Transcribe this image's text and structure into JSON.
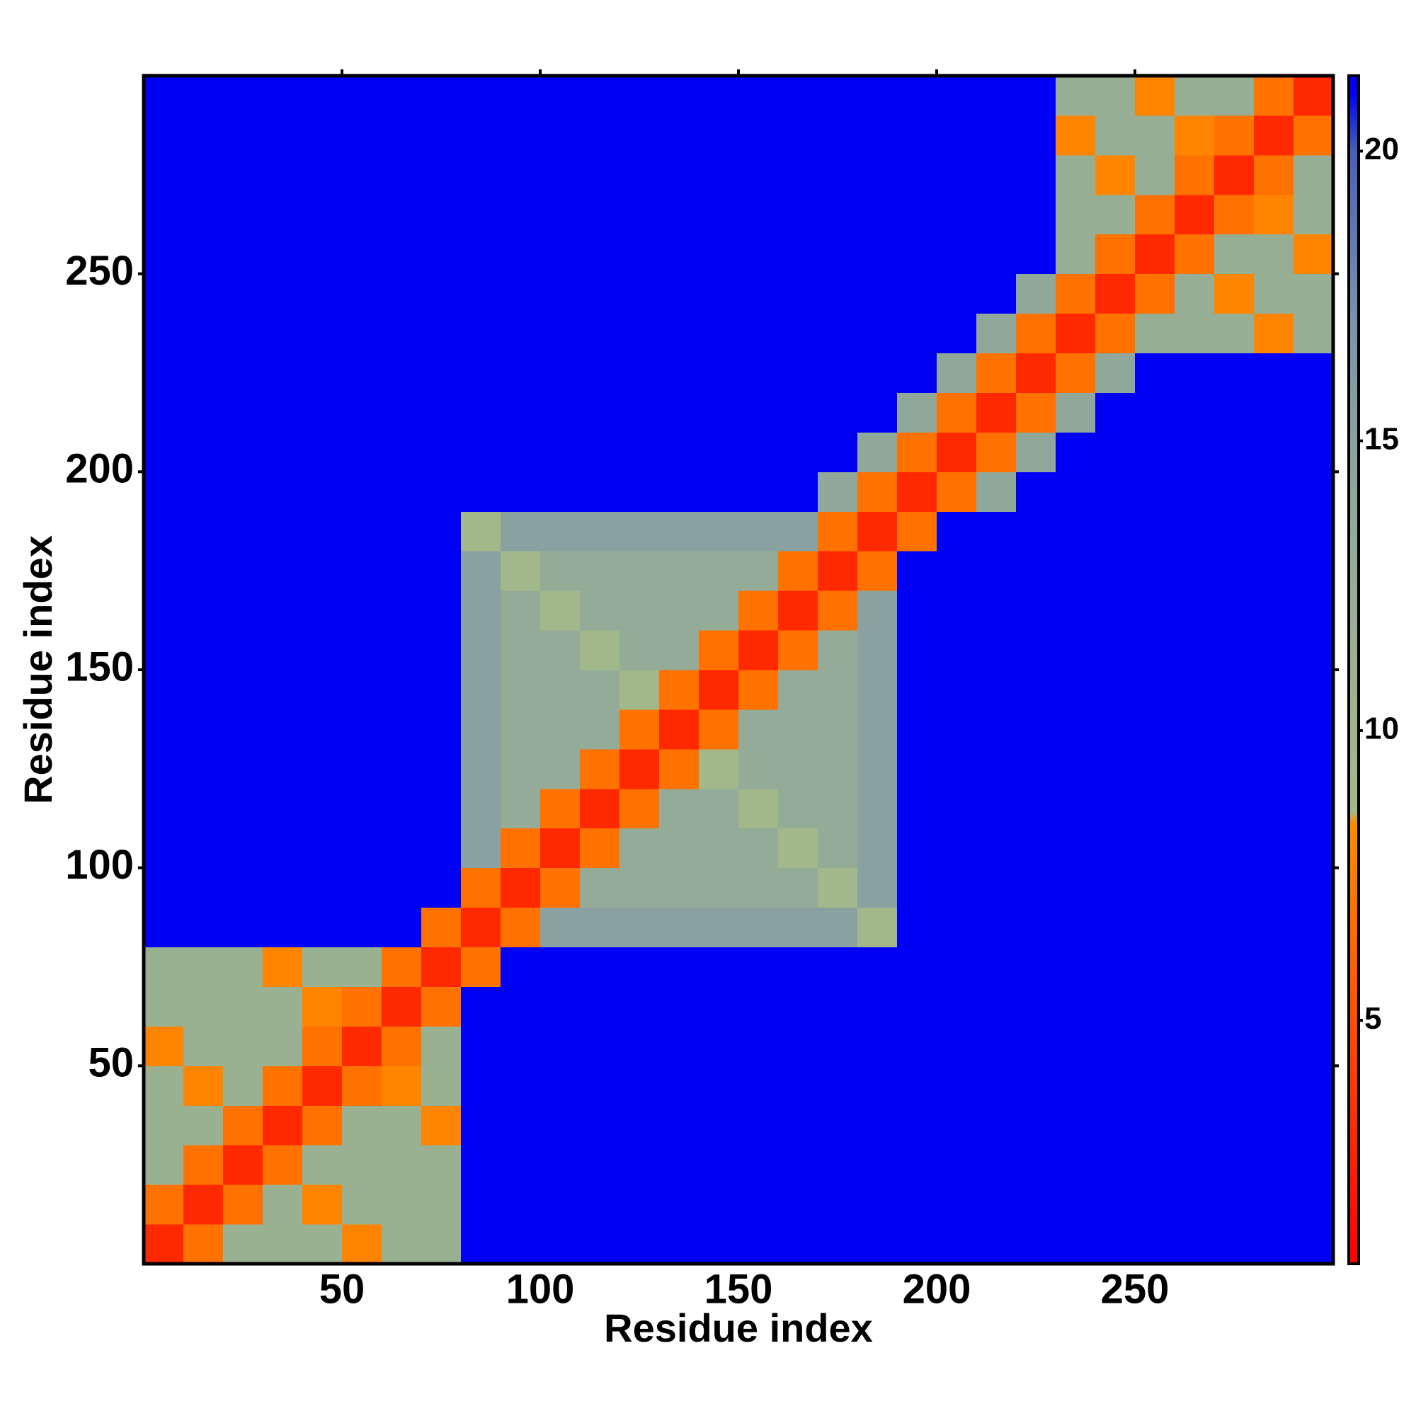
{
  "chart_data": {
    "type": "heatmap",
    "xlabel": "Residue index",
    "ylabel": "Residue index",
    "xlim": [
      0,
      300
    ],
    "ylim": [
      0,
      300
    ],
    "xticks": [
      50,
      100,
      150,
      200,
      250
    ],
    "yticks": [
      50,
      100,
      150,
      200,
      250
    ],
    "bins": [
      0,
      10,
      20,
      30,
      40,
      50,
      60,
      70,
      80,
      90,
      100,
      110,
      120,
      130,
      140,
      150,
      160,
      170,
      180,
      190,
      200,
      210,
      220,
      230,
      240,
      250,
      260,
      270,
      280,
      290,
      300
    ],
    "z": [
      [
        3,
        7,
        11,
        11,
        11,
        8,
        11,
        11,
        21,
        21,
        21,
        21,
        21,
        21,
        21,
        21,
        21,
        21,
        21,
        21,
        21,
        21,
        21,
        21,
        21,
        21,
        21,
        21,
        21,
        21
      ],
      [
        7,
        3,
        7,
        11,
        8,
        11,
        11,
        11,
        21,
        21,
        21,
        21,
        21,
        21,
        21,
        21,
        21,
        21,
        21,
        21,
        21,
        21,
        21,
        21,
        21,
        21,
        21,
        21,
        21,
        21
      ],
      [
        11,
        7,
        3,
        7,
        11,
        11,
        11,
        11,
        21,
        21,
        21,
        21,
        21,
        21,
        21,
        21,
        21,
        21,
        21,
        21,
        21,
        21,
        21,
        21,
        21,
        21,
        21,
        21,
        21,
        21
      ],
      [
        11,
        11,
        7,
        3,
        7,
        11,
        11,
        8,
        21,
        21,
        21,
        21,
        21,
        21,
        21,
        21,
        21,
        21,
        21,
        21,
        21,
        21,
        21,
        21,
        21,
        21,
        21,
        21,
        21,
        21
      ],
      [
        11,
        8,
        11,
        7,
        3,
        7,
        8,
        11,
        21,
        21,
        21,
        21,
        21,
        21,
        21,
        21,
        21,
        21,
        21,
        21,
        21,
        21,
        21,
        21,
        21,
        21,
        21,
        21,
        21,
        21
      ],
      [
        8,
        11,
        11,
        11,
        7,
        3,
        7,
        11,
        21,
        21,
        21,
        21,
        21,
        21,
        21,
        21,
        21,
        21,
        21,
        21,
        21,
        21,
        21,
        21,
        21,
        21,
        21,
        21,
        21,
        21
      ],
      [
        11,
        11,
        11,
        11,
        8,
        7,
        3,
        7,
        21,
        21,
        21,
        21,
        21,
        21,
        21,
        21,
        21,
        21,
        21,
        21,
        21,
        21,
        21,
        21,
        21,
        21,
        21,
        21,
        21,
        21
      ],
      [
        11,
        11,
        11,
        8,
        11,
        11,
        7,
        3,
        7,
        21,
        21,
        21,
        21,
        21,
        21,
        21,
        21,
        21,
        21,
        21,
        21,
        21,
        21,
        21,
        21,
        21,
        21,
        21,
        21,
        21
      ],
      [
        21,
        21,
        21,
        21,
        21,
        21,
        21,
        7,
        3,
        7,
        15,
        15,
        15,
        15,
        15,
        15,
        15,
        15,
        9,
        21,
        21,
        21,
        21,
        21,
        21,
        21,
        21,
        21,
        21,
        21
      ],
      [
        21,
        21,
        21,
        21,
        21,
        21,
        21,
        21,
        7,
        3,
        7,
        13,
        13,
        13,
        13,
        13,
        13,
        9,
        15,
        21,
        21,
        21,
        21,
        21,
        21,
        21,
        21,
        21,
        21,
        21
      ],
      [
        21,
        21,
        21,
        21,
        21,
        21,
        21,
        21,
        15,
        7,
        3,
        7,
        13,
        13,
        13,
        13,
        9,
        13,
        15,
        21,
        21,
        21,
        21,
        21,
        21,
        21,
        21,
        21,
        21,
        21
      ],
      [
        21,
        21,
        21,
        21,
        21,
        21,
        21,
        21,
        15,
        13,
        7,
        3,
        7,
        13,
        13,
        9,
        13,
        13,
        15,
        21,
        21,
        21,
        21,
        21,
        21,
        21,
        21,
        21,
        21,
        21
      ],
      [
        21,
        21,
        21,
        21,
        21,
        21,
        21,
        21,
        15,
        13,
        13,
        7,
        3,
        7,
        9,
        13,
        13,
        13,
        15,
        21,
        21,
        21,
        21,
        21,
        21,
        21,
        21,
        21,
        21,
        21
      ],
      [
        21,
        21,
        21,
        21,
        21,
        21,
        21,
        21,
        15,
        13,
        13,
        13,
        7,
        3,
        7,
        13,
        13,
        13,
        15,
        21,
        21,
        21,
        21,
        21,
        21,
        21,
        21,
        21,
        21,
        21
      ],
      [
        21,
        21,
        21,
        21,
        21,
        21,
        21,
        21,
        15,
        13,
        13,
        13,
        9,
        7,
        3,
        7,
        13,
        13,
        15,
        21,
        21,
        21,
        21,
        21,
        21,
        21,
        21,
        21,
        21,
        21
      ],
      [
        21,
        21,
        21,
        21,
        21,
        21,
        21,
        21,
        15,
        13,
        13,
        9,
        13,
        13,
        7,
        3,
        7,
        13,
        15,
        21,
        21,
        21,
        21,
        21,
        21,
        21,
        21,
        21,
        21,
        21
      ],
      [
        21,
        21,
        21,
        21,
        21,
        21,
        21,
        21,
        15,
        13,
        9,
        13,
        13,
        13,
        13,
        7,
        3,
        7,
        15,
        21,
        21,
        21,
        21,
        21,
        21,
        21,
        21,
        21,
        21,
        21
      ],
      [
        21,
        21,
        21,
        21,
        21,
        21,
        21,
        21,
        15,
        9,
        13,
        13,
        13,
        13,
        13,
        13,
        7,
        3,
        7,
        21,
        21,
        21,
        21,
        21,
        21,
        21,
        21,
        21,
        21,
        21
      ],
      [
        21,
        21,
        21,
        21,
        21,
        21,
        21,
        21,
        9,
        15,
        15,
        15,
        15,
        15,
        15,
        15,
        15,
        7,
        3,
        7,
        21,
        21,
        21,
        21,
        21,
        21,
        21,
        21,
        21,
        21
      ],
      [
        21,
        21,
        21,
        21,
        21,
        21,
        21,
        21,
        21,
        21,
        21,
        21,
        21,
        21,
        21,
        21,
        21,
        14,
        7,
        3,
        7,
        14,
        21,
        21,
        21,
        21,
        21,
        21,
        21,
        21
      ],
      [
        21,
        21,
        21,
        21,
        21,
        21,
        21,
        21,
        21,
        21,
        21,
        21,
        21,
        21,
        21,
        21,
        21,
        21,
        14,
        7,
        3,
        7,
        14,
        21,
        21,
        21,
        21,
        21,
        21,
        21
      ],
      [
        21,
        21,
        21,
        21,
        21,
        21,
        21,
        21,
        21,
        21,
        21,
        21,
        21,
        21,
        21,
        21,
        21,
        21,
        21,
        14,
        7,
        3,
        7,
        14,
        21,
        21,
        21,
        21,
        21,
        21
      ],
      [
        21,
        21,
        21,
        21,
        21,
        21,
        21,
        21,
        21,
        21,
        21,
        21,
        21,
        21,
        21,
        21,
        21,
        21,
        21,
        21,
        14,
        7,
        3,
        7,
        14,
        21,
        21,
        21,
        21,
        21
      ],
      [
        21,
        21,
        21,
        21,
        21,
        21,
        21,
        21,
        21,
        21,
        21,
        21,
        21,
        21,
        21,
        21,
        21,
        21,
        21,
        21,
        21,
        14,
        7,
        3,
        7,
        12,
        12,
        12,
        8,
        12
      ],
      [
        21,
        21,
        21,
        21,
        21,
        21,
        21,
        21,
        21,
        21,
        21,
        21,
        21,
        21,
        21,
        21,
        21,
        21,
        21,
        21,
        21,
        21,
        14,
        7,
        3,
        7,
        12,
        8,
        12,
        12
      ],
      [
        21,
        21,
        21,
        21,
        21,
        21,
        21,
        21,
        21,
        21,
        21,
        21,
        21,
        21,
        21,
        21,
        21,
        21,
        21,
        21,
        21,
        21,
        21,
        12,
        7,
        3,
        7,
        12,
        12,
        8
      ],
      [
        21,
        21,
        21,
        21,
        21,
        21,
        21,
        21,
        21,
        21,
        21,
        21,
        21,
        21,
        21,
        21,
        21,
        21,
        21,
        21,
        21,
        21,
        21,
        12,
        12,
        7,
        3,
        7,
        8,
        12
      ],
      [
        21,
        21,
        21,
        21,
        21,
        21,
        21,
        21,
        21,
        21,
        21,
        21,
        21,
        21,
        21,
        21,
        21,
        21,
        21,
        21,
        21,
        21,
        21,
        12,
        8,
        12,
        7,
        3,
        7,
        12
      ],
      [
        21,
        21,
        21,
        21,
        21,
        21,
        21,
        21,
        21,
        21,
        21,
        21,
        21,
        21,
        21,
        21,
        21,
        21,
        21,
        21,
        21,
        21,
        21,
        8,
        12,
        12,
        8,
        7,
        3,
        7
      ],
      [
        21,
        21,
        21,
        21,
        21,
        21,
        21,
        21,
        21,
        21,
        21,
        21,
        21,
        21,
        21,
        21,
        21,
        21,
        21,
        21,
        21,
        21,
        21,
        12,
        12,
        8,
        12,
        12,
        7,
        3
      ]
    ],
    "colorbar": {
      "lim": [
        0.8,
        21.3
      ],
      "ticks": [
        5,
        10,
        15,
        20
      ],
      "stops": [
        {
          "value": 0.8,
          "color": "#ff0000"
        },
        {
          "value": 8.4,
          "color": "#ff8c00"
        },
        {
          "value": 8.6,
          "color": "#a3b98a"
        },
        {
          "value": 14,
          "color": "#8fa89a"
        },
        {
          "value": 17,
          "color": "#7d93ad"
        },
        {
          "value": 20,
          "color": "#4a5fb8"
        },
        {
          "value": 21,
          "color": "#0000f5"
        }
      ]
    }
  }
}
